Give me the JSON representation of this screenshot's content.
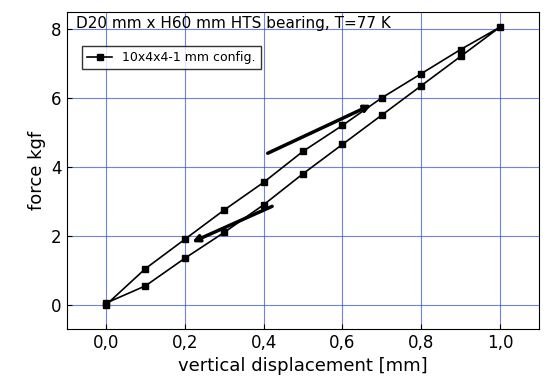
{
  "chart_data": {
    "type": "line",
    "title": "D20 mm x H60 mm HTS bearing, T=77 K",
    "x_label": "vertical displacement [mm]",
    "y_label": "force kgf",
    "x": [
      0.0,
      0.1,
      0.2,
      0.3,
      0.4,
      0.5,
      0.6,
      0.7,
      0.8,
      0.9,
      1.0,
      0.9,
      0.8,
      0.7,
      0.6,
      0.5,
      0.4,
      0.3,
      0.2,
      0.1,
      0.0
    ],
    "series": [
      {
        "name": "10x4x4-1 mm config.",
        "color": "#000000",
        "marker": "square",
        "line_style": "solid",
        "values": [
          0.0,
          1.05,
          1.9,
          2.75,
          3.55,
          4.45,
          5.2,
          6.0,
          6.7,
          7.4,
          8.05,
          7.2,
          6.35,
          5.5,
          4.65,
          3.8,
          2.9,
          2.1,
          1.35,
          0.55,
          0.05
        ]
      }
    ],
    "xlim": [
      -0.1,
      1.1
    ],
    "xticks": [
      {
        "value": 0.0,
        "label": "0,0"
      },
      {
        "value": 0.2,
        "label": "0,2"
      },
      {
        "value": 0.4,
        "label": "0,4"
      },
      {
        "value": 0.6,
        "label": "0,6"
      },
      {
        "value": 0.8,
        "label": "0,8"
      },
      {
        "value": 1.0,
        "label": "1,0"
      }
    ],
    "ylim": [
      -0.7,
      8.5
    ],
    "yticks": [
      0,
      2,
      4,
      6,
      8
    ],
    "grid": true,
    "legend": "upper left"
  }
}
